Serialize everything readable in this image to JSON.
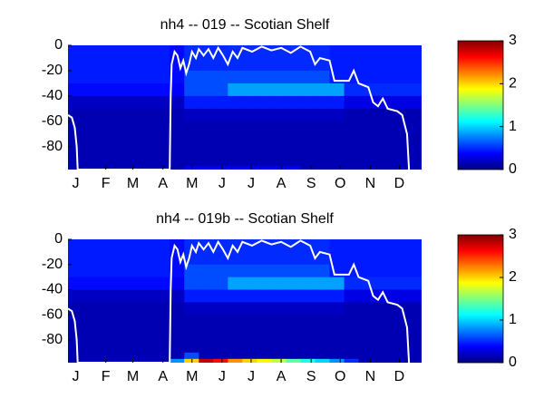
{
  "chart_data": [
    {
      "type": "heatmap",
      "title": "nh4 -- 019 -- Scotian Shelf",
      "xlim": [
        0,
        365
      ],
      "ylim": [
        -98,
        0
      ],
      "xticks": [
        {
          "value": 8,
          "label": "J"
        },
        {
          "value": 39,
          "label": "F"
        },
        {
          "value": 67,
          "label": "M"
        },
        {
          "value": 98,
          "label": "A"
        },
        {
          "value": 128,
          "label": "M"
        },
        {
          "value": 159,
          "label": "J"
        },
        {
          "value": 189,
          "label": "J"
        },
        {
          "value": 220,
          "label": "A"
        },
        {
          "value": 251,
          "label": "S"
        },
        {
          "value": 281,
          "label": "O"
        },
        {
          "value": 312,
          "label": "N"
        },
        {
          "value": 342,
          "label": "D"
        }
      ],
      "yticks": [
        0,
        -20,
        -40,
        -60,
        -80
      ],
      "clim": [
        0,
        3
      ],
      "cticks": [
        0,
        1,
        2,
        3
      ],
      "xbins": [
        0,
        15,
        30,
        45,
        60,
        75,
        90,
        105,
        120,
        135,
        150,
        165,
        180,
        195,
        210,
        225,
        240,
        255,
        270,
        285,
        300,
        315,
        330,
        345,
        365
      ],
      "ybins": [
        0,
        -10,
        -20,
        -30,
        -40,
        -50,
        -60,
        -70,
        -80,
        -90,
        -95,
        -98
      ],
      "z": [
        [
          0.45,
          0.45,
          0.45,
          0.45,
          0.45,
          0.45,
          0.45,
          0.4,
          0.5,
          0.5,
          0.5,
          0.5,
          0.5,
          0.5,
          0.5,
          0.5,
          0.5,
          0.5,
          0.45,
          0.45,
          0.45,
          0.45,
          0.45,
          0.45
        ],
        [
          0.45,
          0.45,
          0.45,
          0.45,
          0.45,
          0.45,
          0.45,
          0.4,
          0.5,
          0.5,
          0.5,
          0.5,
          0.5,
          0.5,
          0.5,
          0.5,
          0.5,
          0.5,
          0.45,
          0.45,
          0.45,
          0.45,
          0.45,
          0.45
        ],
        [
          0.45,
          0.45,
          0.45,
          0.45,
          0.45,
          0.45,
          0.45,
          0.4,
          0.6,
          0.6,
          0.6,
          0.6,
          0.6,
          0.6,
          0.6,
          0.6,
          0.6,
          0.6,
          0.45,
          0.45,
          0.45,
          0.45,
          0.45,
          0.45
        ],
        [
          0.4,
          0.4,
          0.4,
          0.4,
          0.4,
          0.4,
          0.4,
          0.35,
          0.6,
          0.6,
          0.6,
          0.85,
          0.85,
          0.85,
          0.85,
          0.85,
          0.85,
          0.85,
          0.85,
          0.5,
          0.5,
          0.5,
          0.5,
          0.5
        ],
        [
          0.2,
          0.2,
          0.2,
          0.2,
          0.2,
          0.2,
          0.2,
          0.2,
          0.45,
          0.45,
          0.45,
          0.45,
          0.45,
          0.45,
          0.45,
          0.45,
          0.45,
          0.45,
          0.45,
          0.3,
          0.3,
          0.3,
          0.3,
          0.3
        ],
        [
          0.15,
          0.15,
          0.15,
          0.15,
          0.15,
          0.15,
          0.15,
          0.15,
          0.2,
          0.2,
          0.2,
          0.2,
          0.2,
          0.2,
          0.2,
          0.2,
          0.2,
          0.2,
          0.2,
          0.15,
          0.15,
          0.15,
          0.15,
          0.15
        ],
        [
          0.15,
          0.15,
          0.15,
          0.15,
          0.15,
          0.15,
          0.15,
          0.15,
          0.15,
          0.15,
          0.15,
          0.15,
          0.15,
          0.15,
          0.15,
          0.15,
          0.15,
          0.15,
          0.15,
          0.15,
          0.15,
          0.15,
          0.15,
          0.15
        ],
        [
          0.15,
          0.15,
          0.15,
          0.15,
          0.15,
          0.15,
          0.15,
          0.15,
          0.15,
          0.15,
          0.15,
          0.15,
          0.15,
          0.15,
          0.15,
          0.15,
          0.15,
          0.15,
          0.15,
          0.15,
          0.15,
          0.15,
          0.15,
          0.15
        ],
        [
          0.15,
          0.15,
          0.15,
          0.15,
          0.15,
          0.15,
          0.15,
          0.15,
          0.15,
          0.15,
          0.15,
          0.15,
          0.15,
          0.15,
          0.15,
          0.15,
          0.15,
          0.15,
          0.15,
          0.15,
          0.15,
          0.15,
          0.15,
          0.15
        ],
        [
          0.15,
          0.15,
          0.15,
          0.15,
          0.15,
          0.15,
          0.15,
          0.15,
          0.15,
          0.15,
          0.15,
          0.15,
          0.15,
          0.15,
          0.15,
          0.15,
          0.15,
          0.15,
          0.15,
          0.15,
          0.15,
          0.15,
          0.15,
          0.15
        ],
        [
          0.15,
          0.15,
          0.15,
          0.15,
          0.15,
          0.15,
          0.15,
          0.15,
          0.3,
          0.3,
          0.3,
          0.3,
          0.3,
          0.3,
          0.3,
          0.3,
          0.15,
          0.15,
          0.15,
          0.15,
          0.15,
          0.15,
          0.15,
          0.15
        ]
      ],
      "line": {
        "color": "#ffffff",
        "x": [
          0,
          4,
          7,
          9,
          10,
          105,
          106,
          107,
          110,
          113,
          116,
          119,
          122,
          125,
          128,
          132,
          135,
          140,
          145,
          150,
          155,
          160,
          165,
          170,
          175,
          180,
          190,
          200,
          210,
          220,
          230,
          240,
          250,
          255,
          260,
          270,
          275,
          290,
          295,
          300,
          310,
          315,
          320,
          325,
          330,
          340,
          345,
          350,
          352
        ],
        "y": [
          -55,
          -57,
          -65,
          -80,
          -98,
          -98,
          -40,
          -15,
          -5,
          -8,
          -18,
          -12,
          -22,
          -15,
          -5,
          -10,
          -3,
          -8,
          -3,
          -10,
          -2,
          -8,
          -15,
          -5,
          -10,
          -2,
          -5,
          -1,
          -4,
          -2,
          -6,
          -1,
          -5,
          -15,
          -10,
          -12,
          -28,
          -28,
          -20,
          -30,
          -33,
          -45,
          -48,
          -42,
          -50,
          -52,
          -55,
          -70,
          -98
        ]
      }
    },
    {
      "type": "heatmap",
      "title": "nh4 -- 019b -- Scotian Shelf",
      "xlim": [
        0,
        365
      ],
      "ylim": [
        -98,
        0
      ],
      "xticks": [
        {
          "value": 8,
          "label": "J"
        },
        {
          "value": 39,
          "label": "F"
        },
        {
          "value": 67,
          "label": "M"
        },
        {
          "value": 98,
          "label": "A"
        },
        {
          "value": 128,
          "label": "M"
        },
        {
          "value": 159,
          "label": "J"
        },
        {
          "value": 189,
          "label": "J"
        },
        {
          "value": 220,
          "label": "A"
        },
        {
          "value": 251,
          "label": "S"
        },
        {
          "value": 281,
          "label": "O"
        },
        {
          "value": 312,
          "label": "N"
        },
        {
          "value": 342,
          "label": "D"
        }
      ],
      "yticks": [
        0,
        -20,
        -40,
        -60,
        -80
      ],
      "clim": [
        0,
        3
      ],
      "cticks": [
        0,
        1,
        2,
        3
      ],
      "xbins": [
        0,
        15,
        30,
        45,
        60,
        75,
        90,
        105,
        120,
        135,
        150,
        165,
        180,
        195,
        210,
        225,
        240,
        255,
        270,
        285,
        300,
        315,
        330,
        345,
        365
      ],
      "ybins": [
        0,
        -10,
        -20,
        -30,
        -40,
        -50,
        -60,
        -70,
        -80,
        -90,
        -95,
        -98
      ],
      "z": [
        [
          0.45,
          0.45,
          0.45,
          0.45,
          0.45,
          0.45,
          0.45,
          0.4,
          0.5,
          0.5,
          0.5,
          0.5,
          0.5,
          0.5,
          0.5,
          0.5,
          0.5,
          0.5,
          0.45,
          0.45,
          0.45,
          0.45,
          0.45,
          0.45
        ],
        [
          0.45,
          0.45,
          0.45,
          0.45,
          0.45,
          0.45,
          0.45,
          0.4,
          0.5,
          0.5,
          0.5,
          0.5,
          0.5,
          0.5,
          0.5,
          0.5,
          0.5,
          0.5,
          0.45,
          0.45,
          0.45,
          0.45,
          0.45,
          0.45
        ],
        [
          0.45,
          0.45,
          0.45,
          0.45,
          0.45,
          0.45,
          0.45,
          0.4,
          0.6,
          0.6,
          0.6,
          0.6,
          0.6,
          0.6,
          0.6,
          0.6,
          0.6,
          0.6,
          0.45,
          0.45,
          0.45,
          0.45,
          0.45,
          0.45
        ],
        [
          0.4,
          0.4,
          0.4,
          0.4,
          0.4,
          0.4,
          0.4,
          0.35,
          0.6,
          0.6,
          0.6,
          0.85,
          0.85,
          0.85,
          0.85,
          0.85,
          0.85,
          0.85,
          0.85,
          0.5,
          0.5,
          0.5,
          0.5,
          0.5
        ],
        [
          0.2,
          0.2,
          0.2,
          0.2,
          0.2,
          0.2,
          0.2,
          0.2,
          0.45,
          0.45,
          0.45,
          0.45,
          0.45,
          0.45,
          0.45,
          0.45,
          0.45,
          0.45,
          0.45,
          0.3,
          0.3,
          0.3,
          0.3,
          0.3
        ],
        [
          0.15,
          0.15,
          0.15,
          0.15,
          0.15,
          0.15,
          0.15,
          0.15,
          0.2,
          0.2,
          0.2,
          0.2,
          0.2,
          0.2,
          0.2,
          0.2,
          0.2,
          0.2,
          0.2,
          0.15,
          0.15,
          0.15,
          0.15,
          0.15
        ],
        [
          0.15,
          0.15,
          0.15,
          0.15,
          0.15,
          0.15,
          0.15,
          0.15,
          0.15,
          0.15,
          0.15,
          0.15,
          0.15,
          0.15,
          0.15,
          0.15,
          0.15,
          0.15,
          0.15,
          0.15,
          0.15,
          0.15,
          0.15,
          0.15
        ],
        [
          0.15,
          0.15,
          0.15,
          0.15,
          0.15,
          0.15,
          0.15,
          0.15,
          0.15,
          0.15,
          0.15,
          0.15,
          0.15,
          0.15,
          0.15,
          0.15,
          0.15,
          0.15,
          0.15,
          0.15,
          0.15,
          0.15,
          0.15,
          0.15
        ],
        [
          0.15,
          0.15,
          0.15,
          0.15,
          0.15,
          0.15,
          0.15,
          0.15,
          0.15,
          0.15,
          0.15,
          0.15,
          0.15,
          0.15,
          0.15,
          0.15,
          0.15,
          0.15,
          0.15,
          0.15,
          0.15,
          0.15,
          0.15,
          0.15
        ],
        [
          0.15,
          0.15,
          0.15,
          0.15,
          0.15,
          0.15,
          0.15,
          0.15,
          0.6,
          0.15,
          0.15,
          0.15,
          0.15,
          0.15,
          0.15,
          0.15,
          0.15,
          0.15,
          0.15,
          0.15,
          0.15,
          0.15,
          0.15,
          0.15
        ],
        [
          0.15,
          0.15,
          0.15,
          0.15,
          0.15,
          0.15,
          0.15,
          0.8,
          2.0,
          2.8,
          2.6,
          2.2,
          2.0,
          1.9,
          1.7,
          1.4,
          1.2,
          1.0,
          0.8,
          0.5,
          0.15,
          0.15,
          0.15,
          0.15
        ]
      ],
      "line": {
        "color": "#ffffff",
        "x": [
          0,
          4,
          7,
          9,
          10,
          105,
          106,
          107,
          110,
          113,
          116,
          119,
          122,
          125,
          128,
          132,
          135,
          140,
          145,
          150,
          155,
          160,
          165,
          170,
          175,
          180,
          190,
          200,
          210,
          220,
          230,
          240,
          250,
          255,
          260,
          270,
          275,
          290,
          295,
          300,
          310,
          315,
          320,
          325,
          330,
          340,
          345,
          350,
          352
        ],
        "y": [
          -55,
          -57,
          -65,
          -80,
          -98,
          -98,
          -40,
          -15,
          -5,
          -8,
          -18,
          -12,
          -22,
          -15,
          -5,
          -10,
          -3,
          -8,
          -3,
          -10,
          -2,
          -8,
          -15,
          -5,
          -10,
          -2,
          -5,
          -1,
          -4,
          -2,
          -6,
          -1,
          -5,
          -15,
          -10,
          -12,
          -28,
          -28,
          -20,
          -30,
          -33,
          -45,
          -48,
          -42,
          -50,
          -52,
          -55,
          -70,
          -98
        ]
      }
    }
  ]
}
